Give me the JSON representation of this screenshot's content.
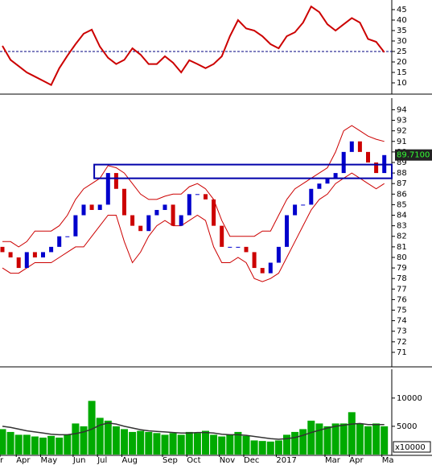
{
  "chart_data": [
    {
      "type": "line",
      "color": "#cc0000",
      "values": [
        27.7,
        21,
        18,
        15,
        13,
        11,
        9,
        17,
        23,
        28.5,
        33.5,
        35.4,
        27.3,
        22,
        19,
        21,
        26.5,
        23.5,
        19,
        19,
        22.7,
        19.6,
        15,
        20.8,
        19,
        17,
        19,
        22.7,
        32.3,
        40,
        36,
        35,
        32.3,
        28.5,
        26.5,
        32.3,
        34.2,
        38.8,
        46.5,
        43.8,
        38,
        35,
        38,
        41,
        38.8,
        31,
        29.6,
        24.6
      ],
      "reference_line": 25,
      "reference_color": "#000080",
      "ylim": [
        5,
        49.6
      ],
      "yticks": [
        10,
        15,
        20,
        25,
        30,
        35,
        40,
        45
      ]
    },
    {
      "type": "candlestick",
      "up_color": "#0000cc",
      "down_color": "#cc0000",
      "open": [
        81,
        80.5,
        80,
        79,
        80.5,
        80,
        80.5,
        81,
        82,
        82,
        84,
        85,
        84.5,
        85,
        88,
        86.5,
        84,
        83,
        82.5,
        84,
        84.5,
        85,
        83,
        84,
        86,
        86,
        85.5,
        83,
        81,
        81,
        81,
        80.5,
        79,
        78.5,
        79.5,
        81,
        84,
        85,
        85,
        86.5,
        87,
        87.5,
        88,
        90,
        91,
        90,
        89,
        88
      ],
      "close": [
        80.5,
        80,
        79,
        80.5,
        80,
        80.5,
        81,
        82,
        82,
        84,
        85,
        84.5,
        85,
        88,
        86.5,
        84,
        83,
        82.5,
        84,
        84.5,
        85,
        83,
        84,
        86,
        86,
        85.5,
        83,
        81,
        81,
        81,
        80.5,
        79,
        78.5,
        79.5,
        81,
        84,
        85,
        85,
        86.5,
        87,
        87.5,
        88,
        90,
        91,
        90,
        89,
        88,
        89.7
      ],
      "bands": {
        "color": "#cc0000",
        "upper": [
          81.5,
          81.5,
          81,
          81.5,
          82.5,
          82.5,
          82.5,
          83,
          84,
          85.5,
          86.5,
          87,
          87.5,
          88.7,
          88.5,
          88,
          87,
          86,
          85.5,
          85.5,
          85.8,
          86,
          86,
          86.7,
          87,
          86.5,
          85.5,
          83.5,
          82,
          82,
          82,
          82,
          82.5,
          82.5,
          84,
          85.5,
          86.5,
          87,
          87.5,
          88,
          88.5,
          90,
          92,
          92.5,
          92,
          91.5,
          91.2,
          91
        ],
        "lower": [
          79,
          78.5,
          78.5,
          79,
          79.5,
          79.5,
          79.5,
          80,
          80.5,
          81,
          81,
          82,
          83,
          84,
          84,
          81.5,
          79.5,
          80.5,
          82,
          83,
          83.5,
          83,
          83,
          83.5,
          84,
          83.5,
          81,
          79.5,
          79.5,
          80,
          79.5,
          78,
          77.7,
          78,
          78.5,
          80,
          81.5,
          83,
          84.5,
          85.5,
          86,
          87,
          87.5,
          88,
          87.5,
          87,
          86.5,
          87
        ]
      },
      "zone": {
        "low": 87.5,
        "high": 88.8,
        "start_index": 11.3,
        "color": "#0000aa"
      },
      "last_price": {
        "value": 89.71,
        "label": "89.7100"
      },
      "ylim": [
        69.7,
        95.1
      ],
      "yticks": [
        71,
        72,
        73,
        74,
        75,
        76,
        77,
        78,
        79,
        80,
        81,
        82,
        83,
        84,
        85,
        86,
        87,
        88,
        89,
        90,
        91,
        92,
        93,
        94
      ]
    },
    {
      "type": "bar",
      "color": "#00aa00",
      "categories": [
        "r",
        null,
        "Apr",
        null,
        null,
        "May",
        null,
        null,
        null,
        "Jun",
        null,
        null,
        "Jul",
        null,
        null,
        "Aug",
        null,
        null,
        null,
        null,
        "Sep",
        null,
        null,
        "Oct",
        null,
        null,
        null,
        "Nov",
        null,
        null,
        "Dec",
        null,
        null,
        null,
        "2017",
        null,
        null,
        null,
        null,
        null,
        "Mar",
        null,
        null,
        "Apr",
        null,
        null,
        null,
        "Ma"
      ],
      "values": [
        4500,
        4000,
        3500,
        3500,
        3200,
        3000,
        3300,
        3000,
        3500,
        5500,
        5000,
        9500,
        6500,
        6000,
        5000,
        4500,
        4000,
        4200,
        4000,
        3800,
        3500,
        3800,
        3500,
        4000,
        3800,
        4200,
        3500,
        3200,
        3500,
        4000,
        3300,
        2500,
        2400,
        2300,
        2500,
        3500,
        4000,
        4500,
        6000,
        5500,
        5000,
        5500,
        5500,
        7500,
        5500,
        5000,
        5500,
        5000
      ],
      "moving_average": {
        "color": "#333333",
        "values": [
          5000,
          4800,
          4500,
          4200,
          4000,
          3800,
          3600,
          3500,
          3500,
          3700,
          4000,
          4500,
          5200,
          5600,
          5400,
          5000,
          4700,
          4400,
          4200,
          4100,
          4000,
          3900,
          3800,
          3800,
          3900,
          3900,
          3800,
          3600,
          3500,
          3500,
          3400,
          3200,
          3000,
          2800,
          2700,
          2800,
          3000,
          3400,
          3900,
          4300,
          4700,
          5000,
          5200,
          5400,
          5500,
          5300,
          5300,
          5300
        ]
      },
      "unit_label": "x10000",
      "ylim": [
        0,
        15100
      ],
      "yticks": [
        5000,
        10000
      ]
    }
  ]
}
